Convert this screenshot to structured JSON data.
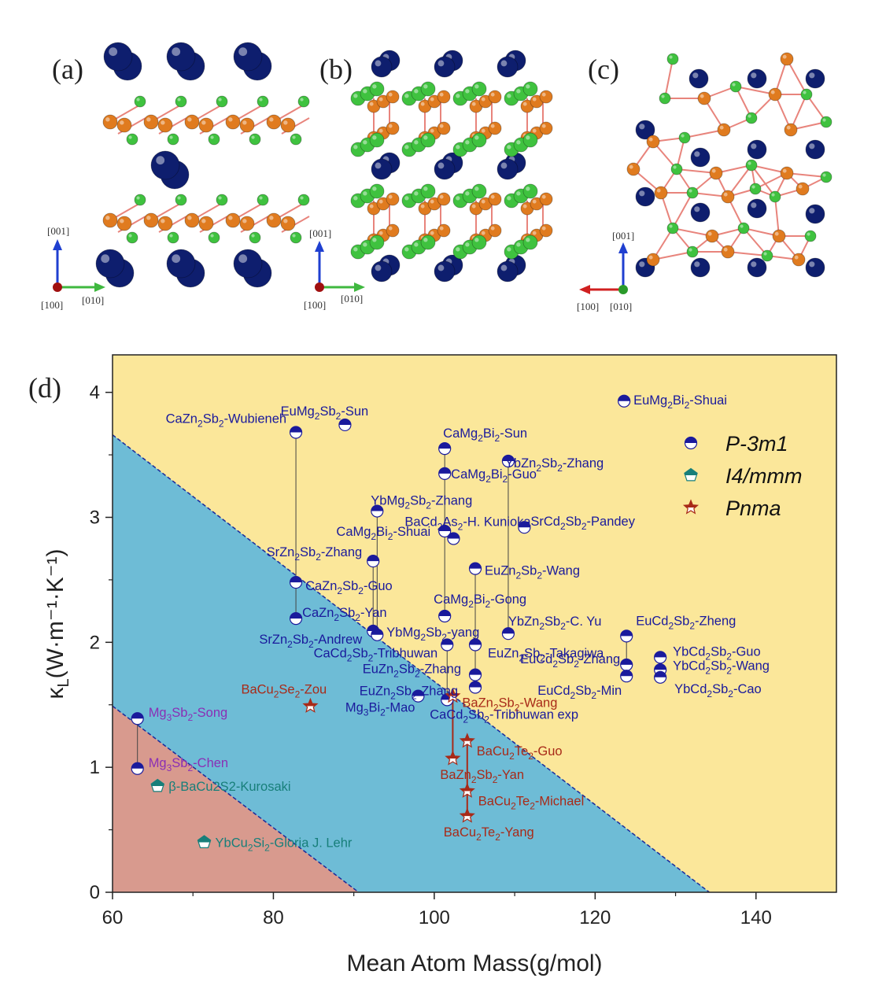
{
  "panels": {
    "a": {
      "label": "(a)",
      "axes": [
        "[001]",
        "[100]",
        "[010]"
      ]
    },
    "b": {
      "label": "(b)",
      "axes": [
        "[001]",
        "[100]",
        "[010]"
      ]
    },
    "c": {
      "label": "(c)",
      "axes": [
        "[001]",
        "[100]",
        "[010]"
      ]
    },
    "d": {
      "label": "(d)"
    }
  },
  "colors": {
    "yellow_region": "#fbe79a",
    "blue_region": "#6ebcd6",
    "red_region": "#d89a8e",
    "P-3m1": "#1a1a9c",
    "I4/mmm": "#177f7a",
    "Pnma": "#a82a18",
    "mg_label": "#8a2fb5",
    "atom_blue": "#0e1e6e",
    "atom_orange": "#e07b1f",
    "atom_green": "#3fc23f"
  },
  "chart_data": {
    "type": "scatter",
    "xlabel": "Mean Atom Mass(g/mol)",
    "ylabel": "κ",
    "ylabel_sub": "L",
    "ylabel_unit": "(W·m⁻¹·K⁻¹)",
    "xlim": [
      60,
      150
    ],
    "ylim": [
      0,
      4.3
    ],
    "xticks": [
      60,
      80,
      100,
      120,
      140
    ],
    "yticks": [
      0,
      1,
      2,
      3,
      4
    ],
    "regions": [
      {
        "name": "high",
        "color": "#fbe79a"
      },
      {
        "name": "mid",
        "color": "#6ebcd6",
        "boundary": [
          [
            60,
            3.66
          ],
          [
            134.2,
            0
          ]
        ]
      },
      {
        "name": "low",
        "color": "#d89a8e",
        "boundary": [
          [
            60,
            1.49
          ],
          [
            90.6,
            0
          ]
        ]
      }
    ],
    "legend": {
      "position": "top-right",
      "entries": [
        "P-3m1",
        "I4/mmm",
        "Pnma"
      ]
    },
    "series": [
      {
        "name": "P-3m1",
        "marker": "half-circle",
        "points": [
          {
            "x": 88.9,
            "y": 3.74,
            "label": "EuMg2Sb2-Sun"
          },
          {
            "x": 123.6,
            "y": 3.93,
            "label": "EuMg2Bi2-Shuai"
          },
          {
            "x": 82.8,
            "y": 3.68,
            "label": "CaZn2Sb2-Wubieneh"
          },
          {
            "x": 101.3,
            "y": 3.55,
            "label": "CaMg2Bi2-Sun"
          },
          {
            "x": 109.2,
            "y": 3.45,
            "label": "YbZn2Sb2-Zhang"
          },
          {
            "x": 101.3,
            "y": 3.35,
            "label": "CaMg2Bi2-Guo"
          },
          {
            "x": 92.9,
            "y": 3.05,
            "label": "YbMg2Sb2-Zhang"
          },
          {
            "x": 111.2,
            "y": 2.92,
            "label": "SrCd2Sb2-Pandey"
          },
          {
            "x": 101.3,
            "y": 2.89,
            "label": "CaMg2Bi2-Shuai"
          },
          {
            "x": 102.4,
            "y": 2.83,
            "label": "BaCd2As2-H. Kunioka"
          },
          {
            "x": 92.4,
            "y": 2.65,
            "label": "SrZn2Sb2-Zhang"
          },
          {
            "x": 105.1,
            "y": 2.59,
            "label": "EuZn2Sb2-Wang"
          },
          {
            "x": 82.8,
            "y": 2.48,
            "label": "CaZn2Sb2-Guo"
          },
          {
            "x": 101.3,
            "y": 2.21,
            "label": "CaMg2Bi2-Gong"
          },
          {
            "x": 82.8,
            "y": 2.19,
            "label": "CaZn2Sb2-Yan"
          },
          {
            "x": 92.4,
            "y": 2.09,
            "label": "SrZn2Sb2-Andrew"
          },
          {
            "x": 92.9,
            "y": 2.06,
            "label": "YbMg2Sb2-yang"
          },
          {
            "x": 109.2,
            "y": 2.07,
            "label": "YbZn2Sb2-C. Yu"
          },
          {
            "x": 123.9,
            "y": 2.05,
            "label": "EuCd2Sb2-Zheng"
          },
          {
            "x": 105.1,
            "y": 1.98,
            "label": "EuZn2Sb2-Takagiwa"
          },
          {
            "x": 101.6,
            "y": 1.98,
            "label": "CaCd2Sb2-Tribhuwan"
          },
          {
            "x": 128.1,
            "y": 1.88,
            "label": "YbCd2Sb2-Guo"
          },
          {
            "x": 123.9,
            "y": 1.82,
            "label": "EuCd2Sb2-Zhang"
          },
          {
            "x": 128.1,
            "y": 1.78,
            "label": "YbCd2Sb2-Wang"
          },
          {
            "x": 105.1,
            "y": 1.74,
            "label": "EuZn2Sb2-Zhang"
          },
          {
            "x": 123.9,
            "y": 1.73,
            "label": "EuCd2Sb2-Min"
          },
          {
            "x": 128.1,
            "y": 1.72,
            "label": "YbCd2Sb2-Cao"
          },
          {
            "x": 105.1,
            "y": 1.64,
            "label": "EuZn2Sb2-Zhang"
          },
          {
            "x": 98.0,
            "y": 1.57,
            "label": "Mg3Bi2-Mao"
          },
          {
            "x": 101.6,
            "y": 1.54,
            "label": "CaCd2Sb2-Tribhuwan exp"
          },
          {
            "x": 63.1,
            "y": 1.39,
            "label": "Mg3Sb2-Song"
          },
          {
            "x": 63.1,
            "y": 0.99,
            "label": "Mg3Sb2-Chen"
          }
        ]
      },
      {
        "name": "I4/mmm",
        "marker": "pentagon",
        "points": [
          {
            "x": 65.6,
            "y": 0.85,
            "label": "β-BaCu2S2-Kurosaki"
          },
          {
            "x": 71.4,
            "y": 0.4,
            "label": "YbCu2Si2-Gloria J. Lehr"
          }
        ]
      },
      {
        "name": "Pnma",
        "marker": "star",
        "points": [
          {
            "x": 84.6,
            "y": 1.49,
            "label": "BaCu2Se2-Zou"
          },
          {
            "x": 102.3,
            "y": 1.57,
            "label": "BaZn2Sb2-Wang"
          },
          {
            "x": 104.1,
            "y": 1.21,
            "label": "BaCu2Te2-Guo"
          },
          {
            "x": 102.3,
            "y": 1.07,
            "label": "BaZn2Sb2-Yan"
          },
          {
            "x": 104.1,
            "y": 0.81,
            "label": "BaCu2Te2-Michael"
          },
          {
            "x": 104.1,
            "y": 0.61,
            "label": "BaCu2Te2-Yang"
          }
        ]
      }
    ]
  }
}
